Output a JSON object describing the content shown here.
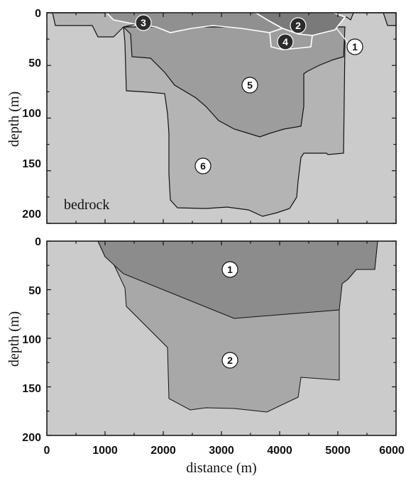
{
  "top_panel": {
    "y_axis_label": "depth (m)",
    "y_ticks": [
      "0",
      "50",
      "100",
      "150",
      "200"
    ],
    "bedrock_label": "bedrock",
    "markers": [
      {
        "label": "1",
        "style": "light"
      },
      {
        "label": "2",
        "style": "dark"
      },
      {
        "label": "3",
        "style": "dark"
      },
      {
        "label": "4",
        "style": "dark"
      },
      {
        "label": "5",
        "style": "light"
      },
      {
        "label": "6",
        "style": "light"
      }
    ]
  },
  "bottom_panel": {
    "y_axis_label": "depth (m)",
    "y_ticks": [
      "0",
      "50",
      "100",
      "150",
      "200"
    ],
    "markers": [
      {
        "label": "1",
        "style": "light"
      },
      {
        "label": "2",
        "style": "light"
      }
    ]
  },
  "x_axis": {
    "label": "distance (m)",
    "ticks": [
      "0",
      "1000",
      "2000",
      "3000",
      "4000",
      "5000",
      "6000"
    ]
  },
  "colors": {
    "bedrock": "#cbcbcb",
    "unit_light": "#b4b4b4",
    "unit_mid": "#9d9d9d",
    "unit_dark": "#868686",
    "unit_darkest": "#5e5e5e",
    "marker_light_fill": "#ffffff",
    "marker_dark_fill": "#2b2b2b"
  }
}
